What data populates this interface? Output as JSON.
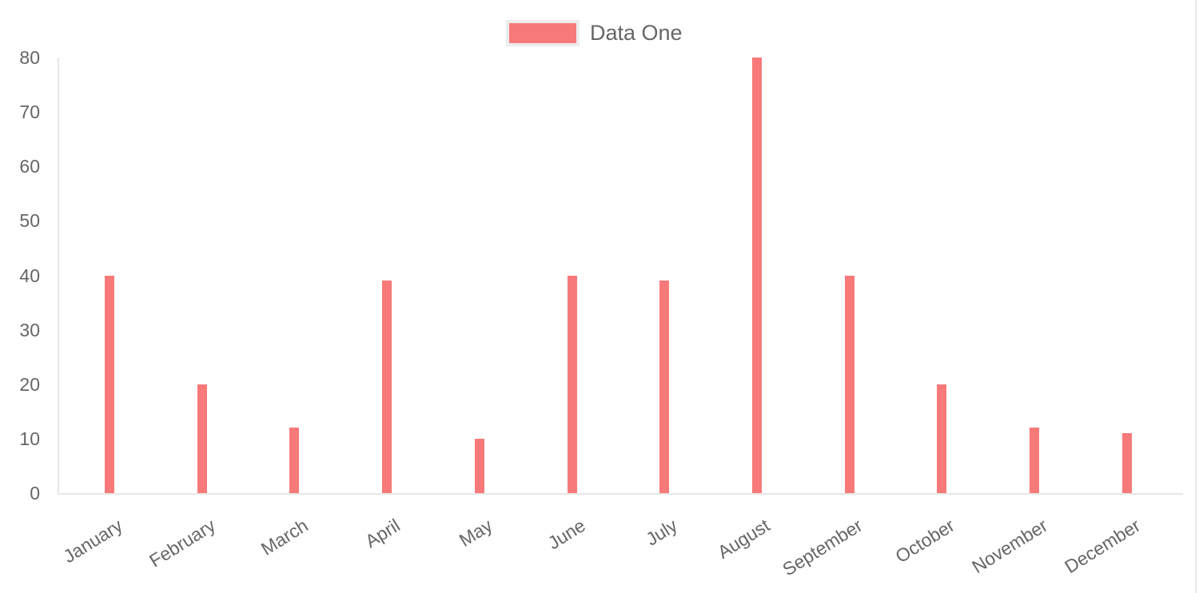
{
  "legend": {
    "label": "Data One"
  },
  "colors": {
    "bar": "#f87979",
    "axis_line": "#e7e7e7",
    "text": "#666666",
    "legend_box_border": "#ededed"
  },
  "chart_data": {
    "type": "bar",
    "title": "",
    "categories": [
      "January",
      "February",
      "March",
      "April",
      "May",
      "June",
      "July",
      "August",
      "September",
      "October",
      "November",
      "December"
    ],
    "series": [
      {
        "name": "Data One",
        "color": "#f87979",
        "values": [
          40,
          20,
          12,
          39,
          10,
          40,
          39,
          80,
          40,
          20,
          12,
          11
        ]
      }
    ],
    "xlabel": "",
    "ylabel": "",
    "ylim": [
      0,
      80
    ],
    "yticks": [
      0,
      10,
      20,
      30,
      40,
      50,
      60,
      70,
      80
    ],
    "grid": false,
    "legend_position": "top-center",
    "x_label_rotation_deg": -32
  }
}
